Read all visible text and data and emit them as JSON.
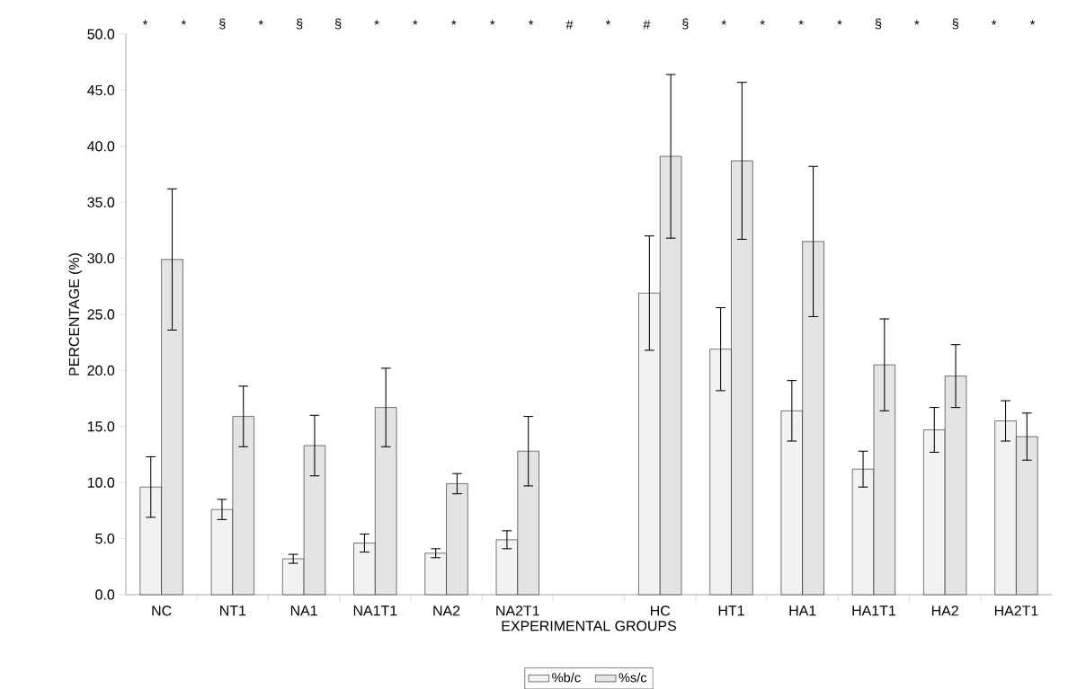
{
  "chart_data": {
    "type": "bar",
    "xlabel": "EXPERIMENTAL GROUPS",
    "ylabel": "PERCENTAGE (%)",
    "categories": [
      "NC",
      "NT1",
      "NA1",
      "NA1T1",
      "NA2",
      "NA2T1",
      null,
      "HC",
      "HT1",
      "HA1",
      "HA1T1",
      "HA2",
      "HA2T1"
    ],
    "series": [
      {
        "name": "%b/c",
        "color": "#f2f2f2",
        "values": [
          9.6,
          7.6,
          3.2,
          4.6,
          3.7,
          4.9,
          null,
          26.9,
          21.9,
          16.4,
          11.2,
          14.7,
          15.5
        ],
        "errors": [
          2.7,
          0.9,
          0.4,
          0.8,
          0.4,
          0.8,
          null,
          5.1,
          3.7,
          2.7,
          1.6,
          2.0,
          1.8
        ]
      },
      {
        "name": "%s/c",
        "color": "#e4e4e4",
        "values": [
          29.9,
          15.9,
          13.3,
          16.7,
          9.9,
          12.8,
          null,
          39.1,
          38.7,
          31.5,
          20.5,
          19.5,
          14.1
        ],
        "errors": [
          6.3,
          2.7,
          2.7,
          3.5,
          0.9,
          3.1,
          null,
          7.3,
          7.0,
          6.7,
          4.1,
          2.8,
          2.1
        ]
      }
    ],
    "ylim": [
      0,
      50
    ],
    "yticks": [
      {
        "value": 0,
        "label": "0.0"
      },
      {
        "value": 5,
        "label": "5.0"
      },
      {
        "value": 10,
        "label": "10.0"
      },
      {
        "value": 15,
        "label": "15.0"
      },
      {
        "value": 20,
        "label": "20.0"
      },
      {
        "value": 25,
        "label": "25.0"
      },
      {
        "value": 30,
        "label": "30.0"
      },
      {
        "value": 35,
        "label": "35.0"
      },
      {
        "value": 40,
        "label": "40.0"
      },
      {
        "value": 45,
        "label": "45.0"
      },
      {
        "value": 50,
        "label": "50.0"
      }
    ],
    "legend": "bottom",
    "grid": false,
    "annotations": [
      "*",
      "*",
      "§",
      "*",
      "§",
      "§",
      "*",
      "*",
      "*",
      "*",
      "*",
      "#",
      "*",
      "#",
      "§",
      "*",
      "*",
      "*",
      "*",
      "§",
      "*",
      "§",
      "*",
      "*"
    ]
  }
}
